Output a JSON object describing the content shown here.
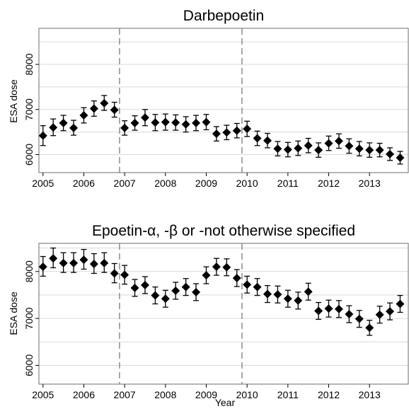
{
  "chart_data": [
    {
      "type": "scatter",
      "title": "Darbepoetin",
      "ylabel": "ESA dose",
      "xlabel": "",
      "xlim": [
        2004.9,
        2013.95
      ],
      "ylim": [
        5600,
        8800
      ],
      "xticks": [
        "2005",
        "2006",
        "2007",
        "2008",
        "2009",
        "2010",
        "2011",
        "2012",
        "2013"
      ],
      "yticks": [
        "6000",
        "7000",
        "8000"
      ],
      "grid": true,
      "vlines": [
        2006.875,
        2009.875
      ],
      "series": [
        {
          "points": [
            {
              "x": 2005.0,
              "y": 6420,
              "lo": 6200,
              "hi": 6640
            },
            {
              "x": 2005.25,
              "y": 6600,
              "lo": 6420,
              "hi": 6790
            },
            {
              "x": 2005.5,
              "y": 6700,
              "lo": 6530,
              "hi": 6870
            },
            {
              "x": 2005.75,
              "y": 6590,
              "lo": 6430,
              "hi": 6760
            },
            {
              "x": 2006.0,
              "y": 6870,
              "lo": 6700,
              "hi": 7040
            },
            {
              "x": 2006.25,
              "y": 7020,
              "lo": 6850,
              "hi": 7190
            },
            {
              "x": 2006.5,
              "y": 7140,
              "lo": 6980,
              "hi": 7310
            },
            {
              "x": 2006.75,
              "y": 6990,
              "lo": 6830,
              "hi": 7160
            },
            {
              "x": 2007.0,
              "y": 6590,
              "lo": 6430,
              "hi": 6750
            },
            {
              "x": 2007.25,
              "y": 6700,
              "lo": 6540,
              "hi": 6860
            },
            {
              "x": 2007.5,
              "y": 6820,
              "lo": 6640,
              "hi": 7000
            },
            {
              "x": 2007.75,
              "y": 6710,
              "lo": 6530,
              "hi": 6890
            },
            {
              "x": 2008.0,
              "y": 6720,
              "lo": 6540,
              "hi": 6900
            },
            {
              "x": 2008.25,
              "y": 6710,
              "lo": 6540,
              "hi": 6880
            },
            {
              "x": 2008.5,
              "y": 6670,
              "lo": 6500,
              "hi": 6840
            },
            {
              "x": 2008.75,
              "y": 6700,
              "lo": 6530,
              "hi": 6870
            },
            {
              "x": 2009.0,
              "y": 6720,
              "lo": 6550,
              "hi": 6890
            },
            {
              "x": 2009.25,
              "y": 6460,
              "lo": 6300,
              "hi": 6620
            },
            {
              "x": 2009.5,
              "y": 6490,
              "lo": 6330,
              "hi": 6650
            },
            {
              "x": 2009.75,
              "y": 6530,
              "lo": 6370,
              "hi": 6690
            },
            {
              "x": 2010.0,
              "y": 6570,
              "lo": 6400,
              "hi": 6740
            },
            {
              "x": 2010.25,
              "y": 6360,
              "lo": 6200,
              "hi": 6520
            },
            {
              "x": 2010.5,
              "y": 6310,
              "lo": 6150,
              "hi": 6470
            },
            {
              "x": 2010.75,
              "y": 6130,
              "lo": 5970,
              "hi": 6290
            },
            {
              "x": 2011.0,
              "y": 6110,
              "lo": 5950,
              "hi": 6270
            },
            {
              "x": 2011.25,
              "y": 6140,
              "lo": 5980,
              "hi": 6300
            },
            {
              "x": 2011.5,
              "y": 6200,
              "lo": 6040,
              "hi": 6360
            },
            {
              "x": 2011.75,
              "y": 6100,
              "lo": 5940,
              "hi": 6260
            },
            {
              "x": 2012.0,
              "y": 6250,
              "lo": 6090,
              "hi": 6410
            },
            {
              "x": 2012.25,
              "y": 6300,
              "lo": 6140,
              "hi": 6460
            },
            {
              "x": 2012.5,
              "y": 6190,
              "lo": 6030,
              "hi": 6350
            },
            {
              "x": 2012.75,
              "y": 6130,
              "lo": 5970,
              "hi": 6290
            },
            {
              "x": 2013.0,
              "y": 6100,
              "lo": 5940,
              "hi": 6260
            },
            {
              "x": 2013.25,
              "y": 6100,
              "lo": 5950,
              "hi": 6250
            },
            {
              "x": 2013.5,
              "y": 6010,
              "lo": 5870,
              "hi": 6150
            },
            {
              "x": 2013.75,
              "y": 5930,
              "lo": 5790,
              "hi": 6070
            }
          ]
        }
      ]
    },
    {
      "type": "scatter",
      "title": "Epoetin-α, -β or -not otherwise specified",
      "ylabel": "ESA dose",
      "xlabel": "Year",
      "xlim": [
        2004.9,
        2013.95
      ],
      "ylim": [
        5600,
        8600
      ],
      "xticks": [
        "2005",
        "2006",
        "2007",
        "2008",
        "2009",
        "2010",
        "2011",
        "2012",
        "2013"
      ],
      "yticks": [
        "6000",
        "7000",
        "8000"
      ],
      "grid": true,
      "vlines": [
        2006.875,
        2009.875
      ],
      "series": [
        {
          "points": [
            {
              "x": 2005.0,
              "y": 8100,
              "lo": 7900,
              "hi": 8320
            },
            {
              "x": 2005.25,
              "y": 8280,
              "lo": 8080,
              "hi": 8500
            },
            {
              "x": 2005.5,
              "y": 8180,
              "lo": 7980,
              "hi": 8400
            },
            {
              "x": 2005.75,
              "y": 8180,
              "lo": 7980,
              "hi": 8400
            },
            {
              "x": 2006.0,
              "y": 8250,
              "lo": 8050,
              "hi": 8470
            },
            {
              "x": 2006.25,
              "y": 8160,
              "lo": 7960,
              "hi": 8380
            },
            {
              "x": 2006.5,
              "y": 8180,
              "lo": 7980,
              "hi": 8400
            },
            {
              "x": 2006.75,
              "y": 7960,
              "lo": 7760,
              "hi": 8170
            },
            {
              "x": 2007.0,
              "y": 7930,
              "lo": 7730,
              "hi": 8130
            },
            {
              "x": 2007.25,
              "y": 7650,
              "lo": 7470,
              "hi": 7830
            },
            {
              "x": 2007.5,
              "y": 7710,
              "lo": 7530,
              "hi": 7890
            },
            {
              "x": 2007.75,
              "y": 7490,
              "lo": 7310,
              "hi": 7670
            },
            {
              "x": 2008.0,
              "y": 7420,
              "lo": 7240,
              "hi": 7600
            },
            {
              "x": 2008.25,
              "y": 7590,
              "lo": 7410,
              "hi": 7770
            },
            {
              "x": 2008.5,
              "y": 7670,
              "lo": 7490,
              "hi": 7850
            },
            {
              "x": 2008.75,
              "y": 7560,
              "lo": 7380,
              "hi": 7740
            },
            {
              "x": 2009.0,
              "y": 7920,
              "lo": 7740,
              "hi": 8100
            },
            {
              "x": 2009.25,
              "y": 8100,
              "lo": 7920,
              "hi": 8280
            },
            {
              "x": 2009.5,
              "y": 8090,
              "lo": 7910,
              "hi": 8270
            },
            {
              "x": 2009.75,
              "y": 7860,
              "lo": 7680,
              "hi": 8040
            },
            {
              "x": 2010.0,
              "y": 7720,
              "lo": 7540,
              "hi": 7900
            },
            {
              "x": 2010.25,
              "y": 7670,
              "lo": 7490,
              "hi": 7850
            },
            {
              "x": 2010.5,
              "y": 7520,
              "lo": 7340,
              "hi": 7700
            },
            {
              "x": 2010.75,
              "y": 7510,
              "lo": 7330,
              "hi": 7690
            },
            {
              "x": 2011.0,
              "y": 7420,
              "lo": 7240,
              "hi": 7600
            },
            {
              "x": 2011.25,
              "y": 7380,
              "lo": 7200,
              "hi": 7560
            },
            {
              "x": 2011.5,
              "y": 7570,
              "lo": 7390,
              "hi": 7750
            },
            {
              "x": 2011.75,
              "y": 7160,
              "lo": 6980,
              "hi": 7340
            },
            {
              "x": 2012.0,
              "y": 7210,
              "lo": 7030,
              "hi": 7390
            },
            {
              "x": 2012.25,
              "y": 7200,
              "lo": 7020,
              "hi": 7380
            },
            {
              "x": 2012.5,
              "y": 7090,
              "lo": 6910,
              "hi": 7270
            },
            {
              "x": 2012.75,
              "y": 6990,
              "lo": 6810,
              "hi": 7170
            },
            {
              "x": 2013.0,
              "y": 6800,
              "lo": 6640,
              "hi": 6960
            },
            {
              "x": 2013.25,
              "y": 7080,
              "lo": 6900,
              "hi": 7260
            },
            {
              "x": 2013.5,
              "y": 7150,
              "lo": 6970,
              "hi": 7330
            },
            {
              "x": 2013.75,
              "y": 7310,
              "lo": 7130,
              "hi": 7490
            }
          ]
        }
      ]
    }
  ]
}
